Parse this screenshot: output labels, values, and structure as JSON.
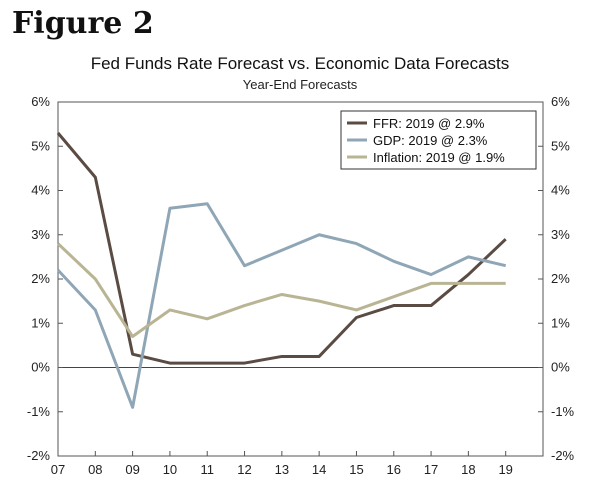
{
  "figure_label": "Figure 2",
  "chart_data": {
    "type": "line",
    "title": "Fed Funds Rate Forecast vs. Economic Data Forecasts",
    "subtitle": "Year-End Forecasts",
    "xlabel": "",
    "ylabel": "",
    "categories": [
      "07",
      "08",
      "09",
      "10",
      "11",
      "12",
      "13",
      "14",
      "15",
      "16",
      "17",
      "18",
      "19"
    ],
    "ylim": [
      -2,
      6
    ],
    "yticks": [
      -2,
      -1,
      0,
      1,
      2,
      3,
      4,
      5,
      6
    ],
    "ytick_labels": [
      "-2%",
      "-1%",
      "0%",
      "1%",
      "2%",
      "3%",
      "4%",
      "5%",
      "6%"
    ],
    "legend_position": "top-right",
    "series": [
      {
        "name": "FFR: 2019 @ 2.9%",
        "key": "ffr",
        "color": "#5a4b43",
        "values": [
          5.3,
          4.3,
          0.3,
          0.1,
          0.1,
          0.1,
          0.25,
          0.25,
          1.13,
          1.4,
          1.4,
          2.1,
          2.9
        ]
      },
      {
        "name": "GDP: 2019 @ 2.3%",
        "key": "gdp",
        "color": "#8fa6b6",
        "values": [
          2.2,
          1.3,
          -0.9,
          3.6,
          3.7,
          2.3,
          2.65,
          3.0,
          2.8,
          2.4,
          2.1,
          2.5,
          2.3
        ]
      },
      {
        "name": "Inflation: 2019 @ 1.9%",
        "key": "inflation",
        "color": "#b9b594",
        "values": [
          2.8,
          2.0,
          0.7,
          1.3,
          1.1,
          1.4,
          1.65,
          1.5,
          1.3,
          1.6,
          1.9,
          1.9,
          1.9
        ]
      }
    ]
  }
}
